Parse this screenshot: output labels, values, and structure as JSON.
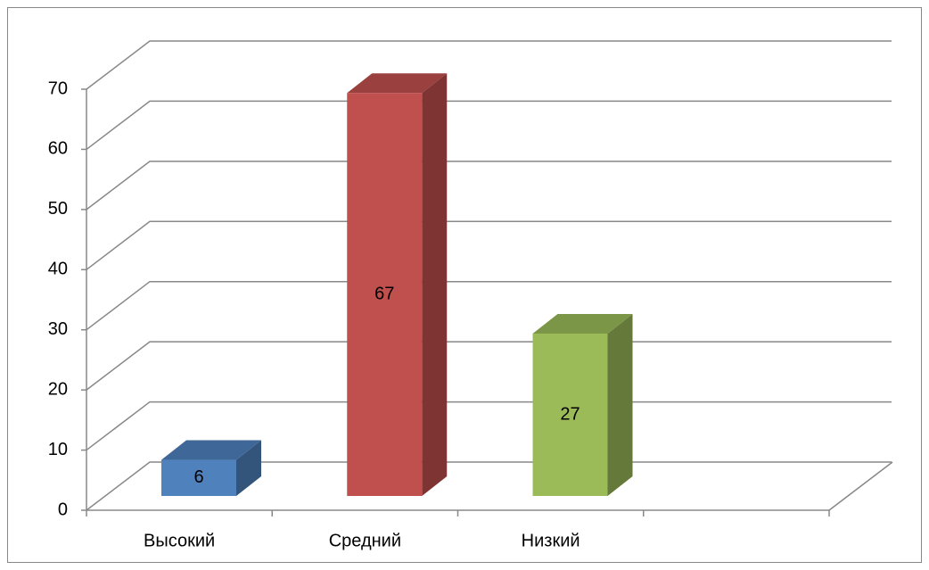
{
  "chart_data": {
    "type": "bar3d",
    "categories": [
      "Высокий",
      "Средний",
      "Низкий",
      null
    ],
    "values": [
      6,
      67,
      27,
      null
    ],
    "colors": [
      "#4f81bd",
      "#c0504d",
      "#9bbb59",
      null
    ],
    "ylim": [
      0,
      70
    ],
    "yticks": [
      0,
      10,
      20,
      30,
      40,
      50,
      60,
      70
    ],
    "grid": true,
    "value_labels_shown": true
  }
}
